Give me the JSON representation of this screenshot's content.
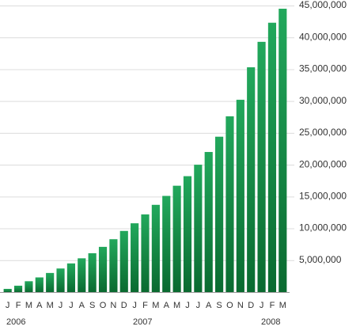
{
  "chart_data": {
    "type": "bar",
    "categories": [
      "J",
      "F",
      "M",
      "A",
      "M",
      "J",
      "J",
      "A",
      "S",
      "O",
      "N",
      "D",
      "J",
      "F",
      "M",
      "A",
      "M",
      "J",
      "J",
      "A",
      "S",
      "O",
      "N",
      "D",
      "J",
      "F",
      "M"
    ],
    "year_labels": [
      "2006",
      "2007",
      "2008"
    ],
    "values": [
      500000,
      1000000,
      1700000,
      2300000,
      3000000,
      3700000,
      4500000,
      5300000,
      6100000,
      7100000,
      8300000,
      9600000,
      10800000,
      12200000,
      13700000,
      15100000,
      16700000,
      18200000,
      20000000,
      22000000,
      24400000,
      27600000,
      30200000,
      35300000,
      39300000,
      42300000,
      44500000
    ],
    "color": "#16914a",
    "ylim": [
      0,
      45000000
    ],
    "yticks": [
      {
        "value": 5000000,
        "label": "5,000,000"
      },
      {
        "value": 10000000,
        "label": "10,000,000"
      },
      {
        "value": 15000000,
        "label": "15,000,000"
      },
      {
        "value": 20000000,
        "label": "20,000,000"
      },
      {
        "value": 25000000,
        "label": "25,000,000"
      },
      {
        "value": 30000000,
        "label": "30,000,000"
      },
      {
        "value": 35000000,
        "label": "35,000,000"
      },
      {
        "value": 40000000,
        "label": "40,000,000"
      },
      {
        "value": 45000000,
        "label": "45,000,000"
      }
    ],
    "grid": true
  }
}
